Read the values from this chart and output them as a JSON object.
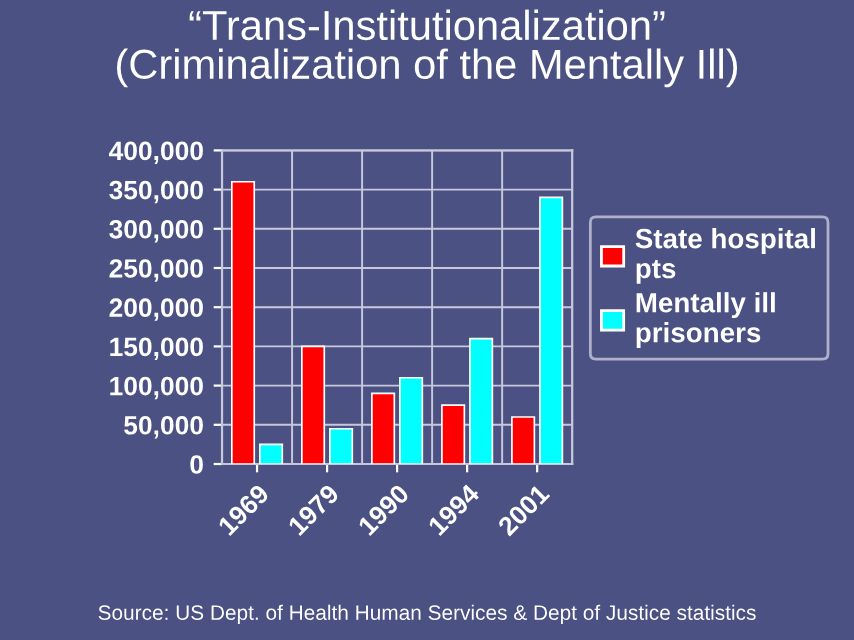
{
  "chart_data": {
    "type": "bar",
    "title": "“Trans-Institutionalization”\n(Criminalization of the Mentally Ill)",
    "categories": [
      "1969",
      "1979",
      "1990",
      "1994",
      "2001"
    ],
    "series": [
      {
        "name": "State hospital pts",
        "color": "#ff0000",
        "values": [
          360000,
          150000,
          90000,
          75000,
          60000
        ]
      },
      {
        "name": "Mentally ill prisoners",
        "color": "#00ffff",
        "values": [
          25000,
          45000,
          110000,
          160000,
          340000
        ]
      }
    ],
    "ylim": [
      0,
      400000
    ],
    "yticks": [
      {
        "value": 0,
        "label": "0"
      },
      {
        "value": 50000,
        "label": "50,000"
      },
      {
        "value": 100000,
        "label": "100,000"
      },
      {
        "value": 150000,
        "label": "150,000"
      },
      {
        "value": 200000,
        "label": "200,000"
      },
      {
        "value": 250000,
        "label": "250,000"
      },
      {
        "value": 300000,
        "label": "300,000"
      },
      {
        "value": 350000,
        "label": "350,000"
      },
      {
        "value": 400000,
        "label": "400,000"
      }
    ],
    "grid": true,
    "legend": "right",
    "annotations": [
      "Source: US Dept. of Health Human Services & Dept of Justice statistics"
    ]
  }
}
